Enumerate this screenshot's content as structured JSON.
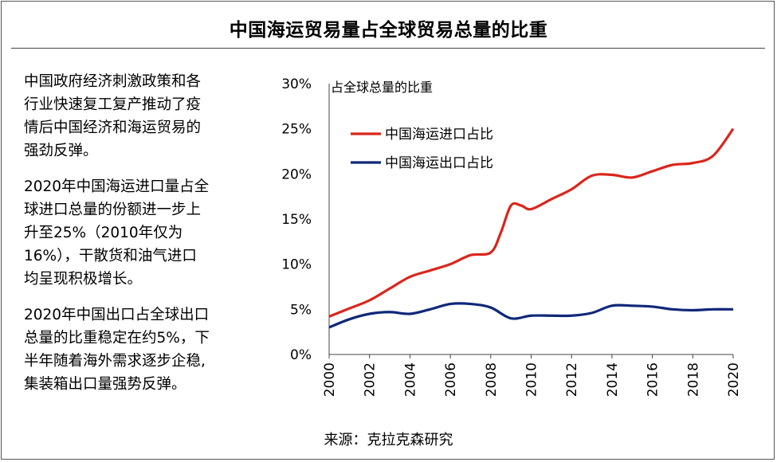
{
  "title": "中国海运贸易量占全球贸易总量的比重",
  "paragraphs": [
    [
      "中国政府经济刺激政策和各",
      "行业快速复工复产推动了疫",
      "情后中国经济和海运贸易的",
      "强劲反弹。"
    ],
    [
      "2020年中国海运进口量占全",
      "球进口总量的份额进一步上",
      "升至25%（2010年仅为",
      "16%），干散货和油气进口",
      "均呈现积极增长。"
    ],
    [
      "2020年中国出口占全球出口",
      "总量的比重稳定在约5%，下",
      "半年随着海外需求逐步企稳,",
      "集装箱出口量强势反弹。"
    ]
  ],
  "source": "来源：克拉克森研究",
  "chart_data": {
    "type": "line",
    "ylabel": "占全球总量的比重",
    "ylim": [
      0,
      30
    ],
    "yticks": [
      "0%",
      "5%",
      "10%",
      "15%",
      "20%",
      "25%",
      "30%"
    ],
    "xlim": [
      2000,
      2020
    ],
    "xticks": [
      "2000",
      "2002",
      "2004",
      "2006",
      "2008",
      "2010",
      "2012",
      "2014",
      "2016",
      "2018",
      "2020"
    ],
    "legend_position": "upper-left",
    "series": [
      {
        "name": "中国海运进口占比",
        "color": "#d9261c",
        "points": [
          [
            2000,
            4.2
          ],
          [
            2001,
            5.1
          ],
          [
            2002,
            6.0
          ],
          [
            2003,
            7.3
          ],
          [
            2004,
            8.6
          ],
          [
            2005,
            9.3
          ],
          [
            2006,
            10.0
          ],
          [
            2007,
            11.0
          ],
          [
            2008,
            11.3
          ],
          [
            2008.5,
            13.5
          ],
          [
            2009,
            16.5
          ],
          [
            2009.5,
            16.5
          ],
          [
            2010,
            16.1
          ],
          [
            2011,
            17.2
          ],
          [
            2012,
            18.3
          ],
          [
            2013,
            19.8
          ],
          [
            2014,
            19.9
          ],
          [
            2015,
            19.6
          ],
          [
            2016,
            20.3
          ],
          [
            2017,
            21.0
          ],
          [
            2018,
            21.2
          ],
          [
            2019,
            22.0
          ],
          [
            2020,
            25.0
          ]
        ]
      },
      {
        "name": "中国海运出口占比",
        "color": "#0f2878",
        "points": [
          [
            2000,
            3.0
          ],
          [
            2001,
            3.9
          ],
          [
            2002,
            4.5
          ],
          [
            2003,
            4.7
          ],
          [
            2004,
            4.5
          ],
          [
            2005,
            5.0
          ],
          [
            2006,
            5.6
          ],
          [
            2007,
            5.6
          ],
          [
            2008,
            5.2
          ],
          [
            2009,
            4.0
          ],
          [
            2010,
            4.3
          ],
          [
            2011,
            4.3
          ],
          [
            2012,
            4.3
          ],
          [
            2013,
            4.6
          ],
          [
            2014,
            5.4
          ],
          [
            2015,
            5.4
          ],
          [
            2016,
            5.3
          ],
          [
            2017,
            5.0
          ],
          [
            2018,
            4.9
          ],
          [
            2019,
            5.0
          ],
          [
            2020,
            5.0
          ]
        ]
      }
    ]
  }
}
